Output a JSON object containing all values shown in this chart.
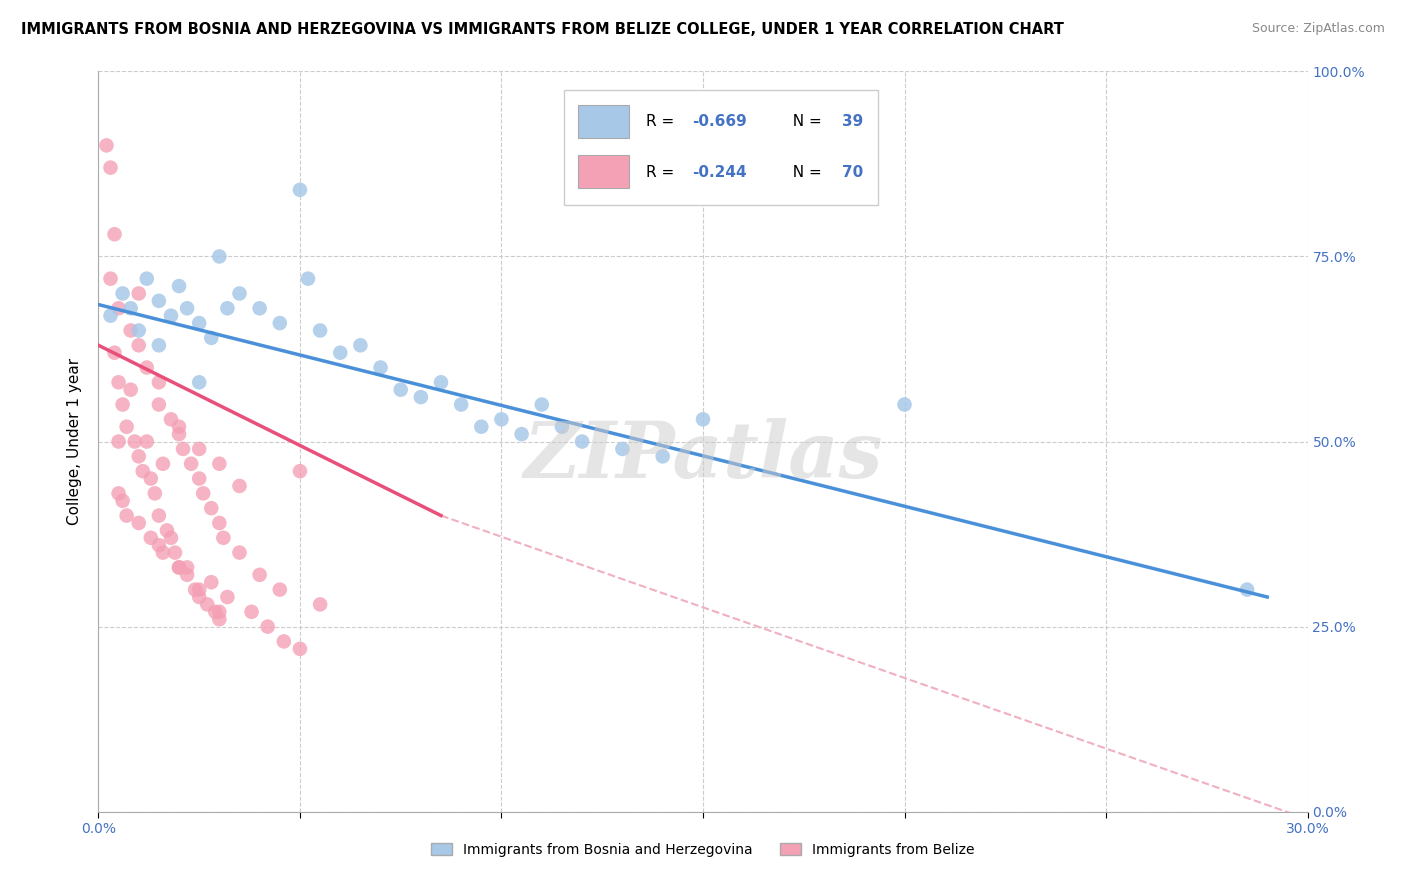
{
  "title": "IMMIGRANTS FROM BOSNIA AND HERZEGOVINA VS IMMIGRANTS FROM BELIZE COLLEGE, UNDER 1 YEAR CORRELATION CHART",
  "source": "Source: ZipAtlas.com",
  "ylabel": "College, Under 1 year",
  "xmin": 0.0,
  "xmax": 30.0,
  "ymin": 0.0,
  "ymax": 100.0,
  "xticks": [
    0.0,
    5.0,
    10.0,
    15.0,
    20.0,
    25.0,
    30.0
  ],
  "yticks": [
    0.0,
    25.0,
    50.0,
    75.0,
    100.0
  ],
  "ytick_labels_right": [
    "0.0%",
    "25.0%",
    "50.0%",
    "75.0%",
    "100.0%"
  ],
  "legend_bottom1": "Immigrants from Bosnia and Herzegovina",
  "legend_bottom2": "Immigrants from Belize",
  "watermark": "ZIPatlas",
  "blue_color": "#a8c8e8",
  "pink_color": "#f4a0b5",
  "blue_line_color": "#4a90d9",
  "pink_line_color": "#e8507a",
  "pink_dashed_color": "#f0b0c0",
  "grid_color": "#cccccc",
  "blue_scatter": [
    [
      0.3,
      67
    ],
    [
      0.6,
      70
    ],
    [
      0.8,
      68
    ],
    [
      1.0,
      65
    ],
    [
      1.2,
      72
    ],
    [
      1.5,
      69
    ],
    [
      1.8,
      67
    ],
    [
      2.0,
      71
    ],
    [
      2.2,
      68
    ],
    [
      2.5,
      66
    ],
    [
      2.8,
      64
    ],
    [
      3.0,
      75
    ],
    [
      3.2,
      68
    ],
    [
      3.5,
      70
    ],
    [
      4.0,
      68
    ],
    [
      4.5,
      66
    ],
    [
      5.0,
      84
    ],
    [
      5.2,
      72
    ],
    [
      5.5,
      65
    ],
    [
      6.0,
      62
    ],
    [
      6.5,
      63
    ],
    [
      7.0,
      60
    ],
    [
      7.5,
      57
    ],
    [
      8.0,
      56
    ],
    [
      8.5,
      58
    ],
    [
      9.0,
      55
    ],
    [
      9.5,
      52
    ],
    [
      10.0,
      53
    ],
    [
      10.5,
      51
    ],
    [
      11.0,
      55
    ],
    [
      11.5,
      52
    ],
    [
      12.0,
      50
    ],
    [
      13.0,
      49
    ],
    [
      14.0,
      48
    ],
    [
      15.0,
      53
    ],
    [
      20.0,
      55
    ],
    [
      28.5,
      30
    ],
    [
      1.5,
      63
    ],
    [
      2.5,
      58
    ]
  ],
  "pink_scatter": [
    [
      0.2,
      90
    ],
    [
      0.3,
      87
    ],
    [
      0.4,
      62
    ],
    [
      0.5,
      68
    ],
    [
      0.5,
      58
    ],
    [
      0.6,
      55
    ],
    [
      0.7,
      52
    ],
    [
      0.8,
      65
    ],
    [
      0.9,
      50
    ],
    [
      1.0,
      63
    ],
    [
      0.3,
      72
    ],
    [
      1.0,
      48
    ],
    [
      1.1,
      46
    ],
    [
      1.2,
      50
    ],
    [
      1.3,
      45
    ],
    [
      1.4,
      43
    ],
    [
      1.5,
      58
    ],
    [
      1.5,
      40
    ],
    [
      1.6,
      47
    ],
    [
      1.7,
      38
    ],
    [
      1.8,
      53
    ],
    [
      1.8,
      37
    ],
    [
      1.9,
      35
    ],
    [
      2.0,
      51
    ],
    [
      2.0,
      33
    ],
    [
      2.1,
      49
    ],
    [
      2.2,
      32
    ],
    [
      2.3,
      47
    ],
    [
      2.4,
      30
    ],
    [
      2.5,
      45
    ],
    [
      2.5,
      29
    ],
    [
      2.6,
      43
    ],
    [
      2.7,
      28
    ],
    [
      2.8,
      41
    ],
    [
      2.9,
      27
    ],
    [
      3.0,
      39
    ],
    [
      3.0,
      26
    ],
    [
      3.1,
      37
    ],
    [
      3.5,
      35
    ],
    [
      4.0,
      32
    ],
    [
      4.5,
      30
    ],
    [
      5.0,
      46
    ],
    [
      0.4,
      78
    ],
    [
      0.5,
      50
    ],
    [
      1.0,
      70
    ],
    [
      1.2,
      60
    ],
    [
      0.8,
      57
    ],
    [
      1.5,
      55
    ],
    [
      2.0,
      52
    ],
    [
      2.5,
      49
    ],
    [
      3.0,
      47
    ],
    [
      3.5,
      44
    ],
    [
      0.6,
      42
    ],
    [
      0.7,
      40
    ],
    [
      1.3,
      37
    ],
    [
      1.6,
      35
    ],
    [
      2.2,
      33
    ],
    [
      2.8,
      31
    ],
    [
      3.2,
      29
    ],
    [
      3.8,
      27
    ],
    [
      4.2,
      25
    ],
    [
      4.6,
      23
    ],
    [
      5.0,
      22
    ],
    [
      5.5,
      28
    ],
    [
      0.5,
      43
    ],
    [
      1.0,
      39
    ],
    [
      1.5,
      36
    ],
    [
      2.0,
      33
    ],
    [
      2.5,
      30
    ],
    [
      3.0,
      27
    ]
  ],
  "blue_trendline": [
    [
      0.0,
      68.5
    ],
    [
      29.0,
      29.0
    ]
  ],
  "pink_trendline_solid": [
    [
      0.0,
      63.0
    ],
    [
      8.5,
      40.0
    ]
  ],
  "pink_trendline_dashed": [
    [
      8.5,
      40.0
    ],
    [
      30.0,
      -1.0
    ]
  ]
}
